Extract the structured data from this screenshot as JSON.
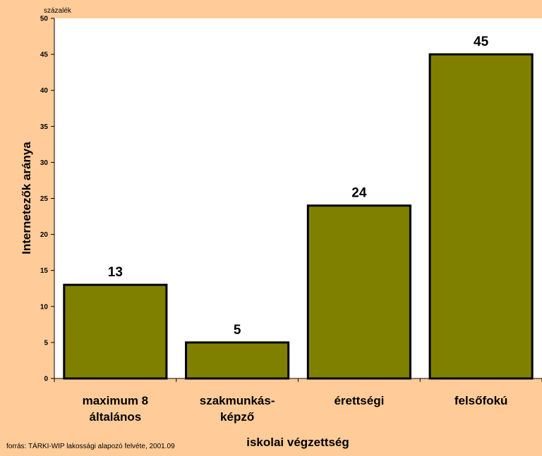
{
  "chart_data": {
    "type": "bar",
    "categories": [
      [
        "maximum 8",
        "általános"
      ],
      [
        "szakmunkás-",
        "képző"
      ],
      [
        "érettségi"
      ],
      [
        "felsőfokú"
      ]
    ],
    "values": [
      13,
      5,
      24,
      45
    ],
    "data_labels": [
      "13",
      "5",
      "24",
      "45"
    ],
    "title": "",
    "unit_label": "százalék",
    "xlabel": "iskolai végzettség",
    "ylabel": "Internetezők aránya",
    "ylim": [
      0,
      50
    ],
    "yticks": [
      "0",
      "5",
      "10",
      "15",
      "20",
      "25",
      "30",
      "35",
      "40",
      "45",
      "50"
    ],
    "grid": false,
    "legend": "none",
    "source_note": "forrás: TÁRKI-WIP lakossági alapozó felvéte, 2001.09",
    "colors": {
      "background": "#FFCC99",
      "plot_area": "#FFFFFF",
      "bar_fill": "#808000",
      "bar_stroke": "#000000"
    }
  }
}
